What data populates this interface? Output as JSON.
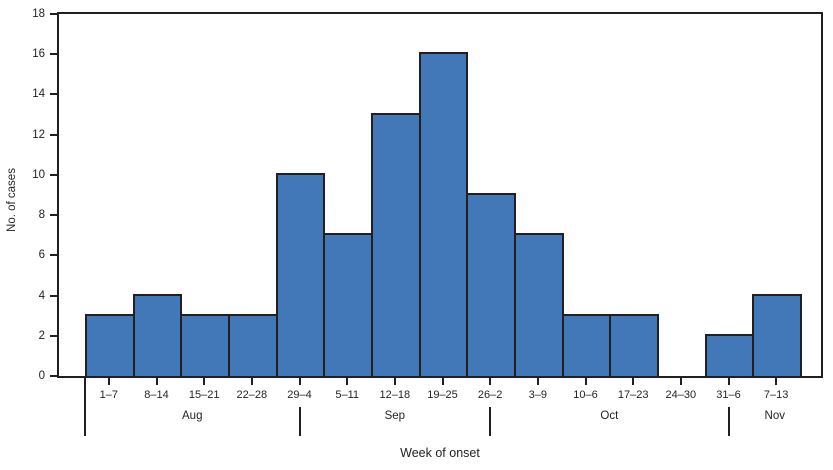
{
  "chart_data": {
    "type": "bar",
    "title": "",
    "xlabel": "Week of onset",
    "ylabel": "No. of cases",
    "categories": [
      "1–7",
      "8–14",
      "15–21",
      "22–28",
      "29–4",
      "5–11",
      "12–18",
      "19–25",
      "26–2",
      "3–9",
      "10–6",
      "17–23",
      "24–30",
      "31–6",
      "7–13"
    ],
    "values": [
      3,
      4,
      3,
      3,
      10,
      7,
      13,
      16,
      9,
      7,
      3,
      3,
      0,
      2,
      4
    ],
    "months": [
      {
        "label": "Aug",
        "start": 0,
        "end": 4
      },
      {
        "label": "Sep",
        "start": 4,
        "end": 8
      },
      {
        "label": "Oct",
        "start": 8,
        "end": 13
      },
      {
        "label": "Nov",
        "start": 13,
        "end": 15
      }
    ],
    "yticks": [
      0,
      2,
      4,
      6,
      8,
      10,
      12,
      14,
      16,
      18
    ],
    "ylim": [
      0,
      18
    ],
    "grid": false,
    "legend": "none",
    "bar_color": "#4278b8",
    "line_color": "#231f20"
  }
}
